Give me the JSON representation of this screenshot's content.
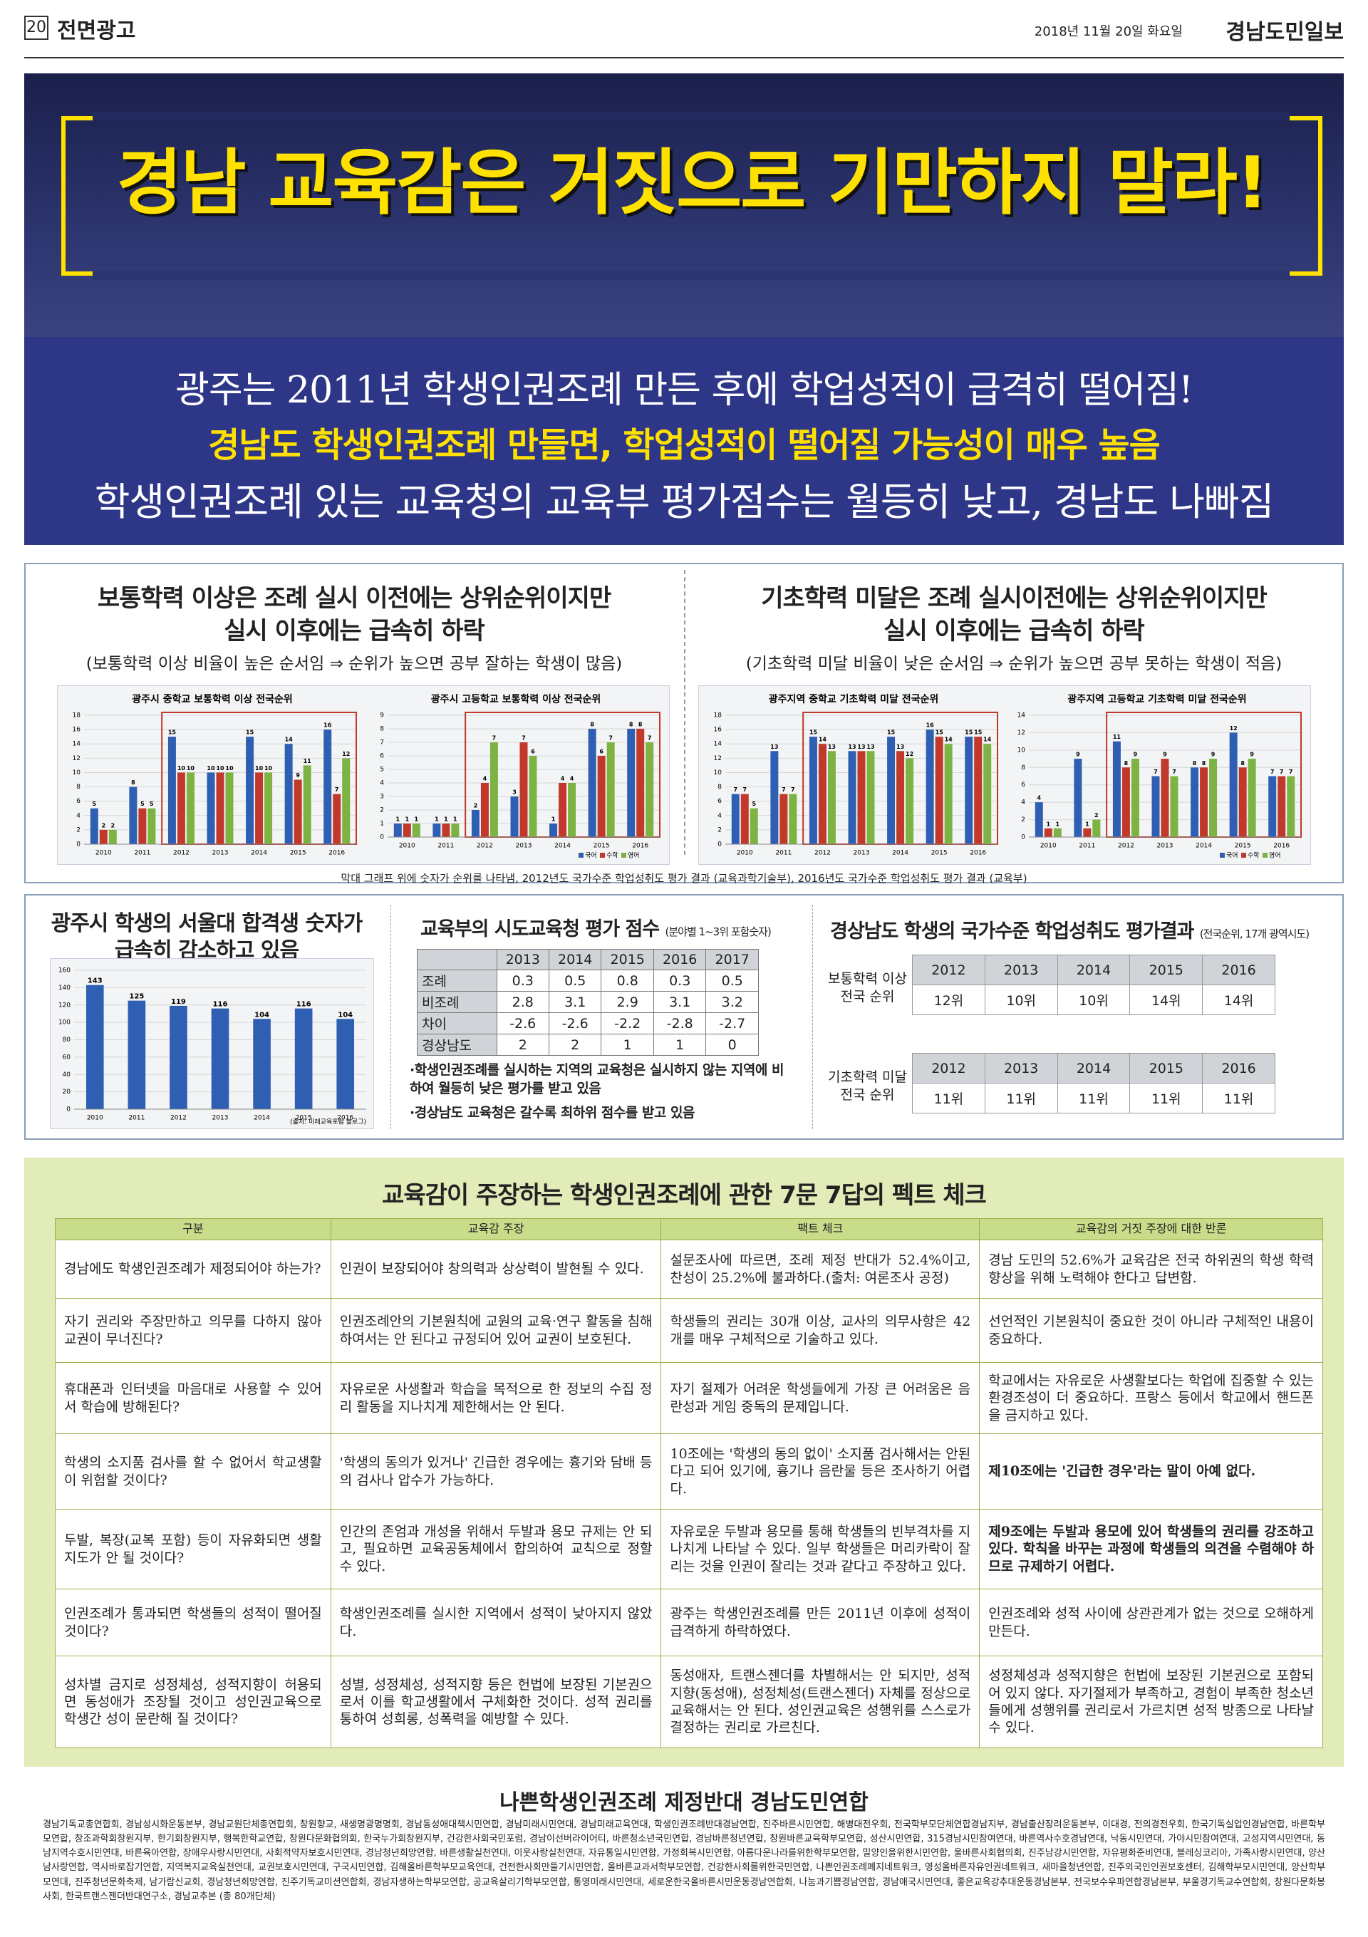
{
  "header": {
    "page": "20",
    "section": "전면광고",
    "date": "2018년 11월 20일 화요일",
    "paper": "경남도민일보"
  },
  "hero": {
    "title": "경남 교육감은 거짓으로 기만하지 말라!"
  },
  "headlines": [
    "광주는 2011년 학생인권조례 만든 후에 학업성적이 급격히 떨어짐!",
    "경남도 학생인권조례 만들면, 학업성적이 떨어질 가능성이 매우 높음",
    "학생인권조례 있는 교육청의 교육부 평가점수는 월등히 낮고, 경남도 나빠짐"
  ],
  "rank_section": {
    "left_title": [
      "보통학력 이상은 조례 실시 이전에는 상위순위이지만",
      "실시 이후에는 급속히 하락"
    ],
    "left_note": "(보통학력 이상 비율이 높은 순서임 ⇒ 순위가 높으면 공부 잘하는 학생이 많음)",
    "right_title": [
      "기초학력 미달은 조례 실시이전에는 상위순위이지만",
      "실시 이후에는 급속히 하락"
    ],
    "right_note": "(기초학력 미달 비율이 낮은 순서임 ⇒ 순위가 높으면 공부 못하는 학생이 적음)",
    "caption": "막대 그래프 위에 숫자가 순위를 나타냄, 2012년도 국가수준 학업성취도 평가 결과 (교육과학기술부), 2016년도 국가수준 학업성취도 평가 결과 (교육부)"
  },
  "charts": [
    {
      "type": "bar",
      "title": "광주시 중학교 보통학력 이상 전국순위",
      "categories": [
        "2010",
        "2011",
        "2012",
        "2013",
        "2014",
        "2015",
        "2016"
      ],
      "series": [
        {
          "name": "국어",
          "color": "#2f5fb3",
          "values": [
            5,
            8,
            15,
            10,
            15,
            14,
            16
          ]
        },
        {
          "name": "수학",
          "color": "#c0392b",
          "values": [
            2,
            5,
            10,
            10,
            10,
            9,
            7
          ]
        },
        {
          "name": "영어",
          "color": "#7cb342",
          "values": [
            2,
            5,
            10,
            10,
            10,
            11,
            12
          ]
        }
      ],
      "ylim": [
        0,
        18
      ],
      "yticks": [
        0,
        2,
        4,
        6,
        8,
        10,
        12,
        14,
        16,
        18
      ],
      "legend": false
    },
    {
      "type": "bar",
      "title": "광주시 고등학교 보통학력 이상 전국순위",
      "categories": [
        "2010",
        "2011",
        "2012",
        "2013",
        "2014",
        "2015",
        "2016"
      ],
      "series": [
        {
          "name": "국어",
          "color": "#2f5fb3",
          "values": [
            1,
            1,
            2,
            3,
            1,
            8,
            8
          ]
        },
        {
          "name": "수학",
          "color": "#c0392b",
          "values": [
            1,
            1,
            4,
            7,
            4,
            6,
            8
          ]
        },
        {
          "name": "영어",
          "color": "#7cb342",
          "values": [
            1,
            1,
            7,
            6,
            4,
            7,
            7
          ]
        }
      ],
      "ylim": [
        0,
        9
      ],
      "yticks": [
        0,
        1,
        2,
        3,
        4,
        5,
        6,
        7,
        8,
        9
      ],
      "legend": true
    },
    {
      "type": "bar",
      "title": "광주지역 중학교 기초학력 미달 전국순위",
      "categories": [
        "2010",
        "2011",
        "2012",
        "2013",
        "2014",
        "2015",
        "2016"
      ],
      "series": [
        {
          "name": "국어",
          "color": "#2f5fb3",
          "values": [
            7,
            13,
            15,
            13,
            15,
            16,
            15
          ]
        },
        {
          "name": "수학",
          "color": "#c0392b",
          "values": [
            7,
            7,
            14,
            13,
            13,
            15,
            15
          ]
        },
        {
          "name": "영어",
          "color": "#7cb342",
          "values": [
            5,
            7,
            13,
            13,
            12,
            14,
            14
          ]
        }
      ],
      "ylim": [
        0,
        18
      ],
      "yticks": [
        0,
        2,
        4,
        6,
        8,
        10,
        12,
        14,
        16,
        18
      ],
      "legend": false
    },
    {
      "type": "bar",
      "title": "광주지역 고등학교 기초학력 미달 전국순위",
      "categories": [
        "2010",
        "2011",
        "2012",
        "2013",
        "2014",
        "2015",
        "2016"
      ],
      "series": [
        {
          "name": "국어",
          "color": "#2f5fb3",
          "values": [
            4,
            9,
            11,
            7,
            8,
            12,
            7
          ]
        },
        {
          "name": "수학",
          "color": "#c0392b",
          "values": [
            1,
            1,
            8,
            9,
            8,
            8,
            7
          ]
        },
        {
          "name": "영어",
          "color": "#7cb342",
          "values": [
            1,
            2,
            9,
            7,
            9,
            9,
            7
          ]
        }
      ],
      "ylim": [
        0,
        14
      ],
      "yticks": [
        0,
        2,
        4,
        6,
        8,
        10,
        12,
        14
      ],
      "legend": true
    },
    {
      "type": "bar",
      "title_lines": [
        "광주시 학생의 서울대 합격생 숫자가",
        "급속히 감소하고 있음"
      ],
      "source": "(출처: 미래교육포럼 블로그)",
      "categories": [
        "2010",
        "2011",
        "2012",
        "2013",
        "2014",
        "2015",
        "2016"
      ],
      "series": [
        {
          "name": "서울대 합격생",
          "color": "#2f5fb3",
          "values": [
            143,
            125,
            119,
            116,
            104,
            116,
            104
          ]
        }
      ],
      "ylim": [
        0,
        160
      ],
      "yticks": [
        0,
        20,
        40,
        60,
        80,
        100,
        120,
        140,
        160
      ],
      "legend": false
    }
  ],
  "score_table": {
    "title": "교육부의 시도교육청 평가 점수",
    "subtitle": "(분야별 1~3위 포함숫자)",
    "columns": [
      "2013",
      "2014",
      "2015",
      "2016",
      "2017"
    ],
    "rows": [
      {
        "label": "조례",
        "values": [
          0.3,
          0.5,
          0.8,
          0.3,
          0.5
        ]
      },
      {
        "label": "비조례",
        "values": [
          2.8,
          3.1,
          2.9,
          3.1,
          3.2
        ]
      },
      {
        "label": "차이",
        "values": [
          -2.6,
          -2.6,
          -2.2,
          -2.8,
          -2.7
        ]
      },
      {
        "label": "경상남도",
        "values": [
          2,
          2,
          1,
          1,
          0
        ]
      }
    ],
    "notes": [
      "·학생인권조례를 실시하는 지역의 교육청은 실시하지 않는 지역에 비하여 월등히 낮은 평가를 받고 있음",
      "·경상남도 교육청은 갈수록 최하위 점수를 받고 있음"
    ]
  },
  "gyeongnam": {
    "title": "경상남도 학생의 국가수준 학업성취도 평가결과",
    "subtitle": "(전국순위, 17개 광역시도)",
    "groups": [
      {
        "label": "보통학력 이상 전국 순위",
        "years": [
          "2012",
          "2013",
          "2014",
          "2015",
          "2016"
        ],
        "ranks": [
          "12위",
          "10위",
          "10위",
          "14위",
          "14위"
        ]
      },
      {
        "label": "기초학력 미달 전국 순위",
        "years": [
          "2012",
          "2013",
          "2014",
          "2015",
          "2016"
        ],
        "ranks": [
          "11위",
          "11위",
          "11위",
          "11위",
          "11위"
        ]
      }
    ]
  },
  "fact_check": {
    "title": "교육감이 주장하는 학생인권조례에 관한 7문 7답의 펙트 체크",
    "columns": [
      "구분",
      "교육감 주장",
      "팩트 체크",
      "교육감의 거짓 주장에 대한 반론"
    ],
    "rows": [
      [
        "경남에도 학생인권조례가 제정되어야 하는가?",
        "인권이 보장되어야 창의력과 상상력이 발현될 수 있다.",
        "설문조사에 따르면, 조례 제정 반대가 52.4%이고, 찬성이 25.2%에 불과하다.(출처: 여론조사 공정)",
        "경남 도민의 52.6%가 교육감은 전국 하위권의 학생 학력 향상을 위해 노력해야 한다고 답변함."
      ],
      [
        "자기 권리와 주장만하고 의무를 다하지 않아 교권이 무너진다?",
        "인권조례안의 기본원칙에 교원의 교육·연구 활동을 침해하여서는 안 된다고 규정되어 있어 교권이 보호된다.",
        "학생들의 권리는 30개 이상, 교사의 의무사항은 42개를 매우 구체적으로 기술하고 있다.",
        "선언적인 기본원칙이 중요한 것이 아니라 구체적인 내용이 중요하다."
      ],
      [
        "휴대폰과 인터넷을 마음대로 사용할 수 있어서 학습에 방해된다?",
        "자유로운 사생활과 학습을 목적으로 한 정보의 수집 정리 활동을 지나치게 제한해서는 안 된다.",
        "자기 절제가 어려운 학생들에게 가장 큰 어려움은 음란성과 게임 중독의 문제입니다.",
        "학교에서는 자유로운 사생활보다는 학업에 집중할 수 있는 환경조성이 더 중요하다. 프랑스 등에서 학교에서 핸드폰을 금지하고 있다."
      ],
      [
        "학생의 소지품 검사를 할 수 없어서 학교생활이 위험할 것이다?",
        "'학생의 동의가 있거나' 긴급한 경우에는 흉기와 담배 등의 검사나 압수가 가능하다.",
        "10조에는 '학생의 동의 없이' 소지품 검사해서는 안된다고 되어 있기에, 흉기나 음란물 등은 조사하기 어렵다.",
        "제10조에는 '긴급한 경우'라는 말이 아예 없다."
      ],
      [
        "두발, 복장(교복 포함) 등이 자유화되면 생활지도가 안 될 것이다?",
        "인간의 존엄과 개성을 위해서 두발과 용모 규제는 안 되고, 필요하면 교육공동체에서 합의하여 교칙으로 정할 수 있다.",
        "자유로운 두발과 용모를 통해 학생들의 빈부격차를 지나치게 나타날 수 있다. 일부 학생들은 머리카락이 잘리는 것을 인권이 잘리는 것과 같다고 주장하고 있다.",
        "제9조에는 두발과 용모에 있어 학생들의 권리를 강조하고 있다. 학칙을 바꾸는 과정에 학생들의 의견을 수렴해야 하므로 규제하기 어렵다."
      ],
      [
        "인권조례가 통과되면 학생들의 성적이 떨어질 것이다?",
        "학생인권조례를 실시한 지역에서 성적이 낮아지지 않았다.",
        "광주는 학생인권조례를 만든 2011년 이후에 성적이 급격하게 하락하였다.",
        "인권조례와 성적 사이에 상관관계가 없는 것으로 오해하게 만든다."
      ],
      [
        "성차별 금지로 성정체성, 성적지향이 허용되면 동성애가 조장될 것이고 성인권교육으로 학생간 성이 문란해 질 것이다?",
        "성별, 성정체성, 성적지향 등은 헌법에 보장된 기본권으로서 이를 학교생활에서 구체화한 것이다. 성적 권리를 통하여 성희롱, 성폭력을 예방할 수 있다.",
        "동성애자, 트랜스젠더를 차별해서는 안 되지만, 성적지향(동성애), 성정체성(트랜스젠더) 자체를 정상으로 교육해서는 안 된다. 성인권교육은 성행위를 스스로가 결정하는 권리로 가르친다.",
        "성정체성과 성적지향은 헌법에 보장된 기본권으로 포함되어 있지 않다. 자기절제가 부족하고, 경험이 부족한 청소년들에게 성행위를 권리로서 가르치면 성적 방종으로 나타날 수 있다."
      ]
    ]
  },
  "footer": {
    "org": "나쁜학생인권조례 제정반대 경남도민연합",
    "members": "경남기독교총연합회, 경남성시화운동본부, 경남교원단체총연합회, 창원향교, 새생명광명명회, 경남동성애대책시민연합, 경남미래시민연대, 경남미래교육연대, 학생인권조례반대경남연합, 진주바른시민연합, 해병대전우회, 전국학부모단체연합경남지부, 경남출산장려운동본부, 이대경, 전의경전우회, 한국기독실업인경남연합, 바른학부모연합, 창조과학회창원지부, 한기회창원지부, 행복한학교연합, 창원다문화협의회, 한국누가회창원지부, 건강한사회국민포럼, 경남이선버라이어티, 바른청소년국민연합, 경남바른청년연합, 창원바른교육학부모연합, 성산시민연합, 315경남시민참여연대, 바른역사수호경남연대, 낙동시민연대, 가야시민참여연대, 고성지역시민연대, 동남지역수호시민연대, 바른육아연합, 장애우사랑시민연대, 사회적약자보호시민연대, 경남청년희망연합, 바른생활실천연대, 이웃사랑실천연대, 자유통일시민연합, 가정회복시민연합, 아름다운나라를위한학부모연합, 밀양인을위한시민연합, 울바른사회협의회, 진주남강시민연합, 자유평화준비연대, 블레싱코리아, 가족사랑시민연대, 양산남사랑연합, 역사바로잡기연합, 지역복지교육실천연대, 교권보호시민연대, 구국시민연합, 김해올바른학부모교육연대, 건전한사회만들기시민연합, 올바른교과서학부모연합, 건강한사회를위한국민연합, 나쁜인권조례폐지네트워크, 영성올바른자유인권네트워크, 새마을청년연합, 진주외국인인권보호센터, 김해학부모시민연대, 양산학부모연대, 진주청년문화축제, 남가람신교회, 경남청년희망연합, 진주기독교미션연합회, 경남자생하는학부모연합, 공교육살리기학부모연합, 통영미래시민연대, 세로운한국올바른시민운동경남연합회, 나눔과기쁨경남연합, 경남애국시민연대, 좋은교육강추대운동경남본부, 전국보수우파연합경남본부, 부울경기독교수연합회, 창원다문화봉사회, 한국트랜스젠더반대연구소, 경남교추본 (총 80개단체)"
  }
}
